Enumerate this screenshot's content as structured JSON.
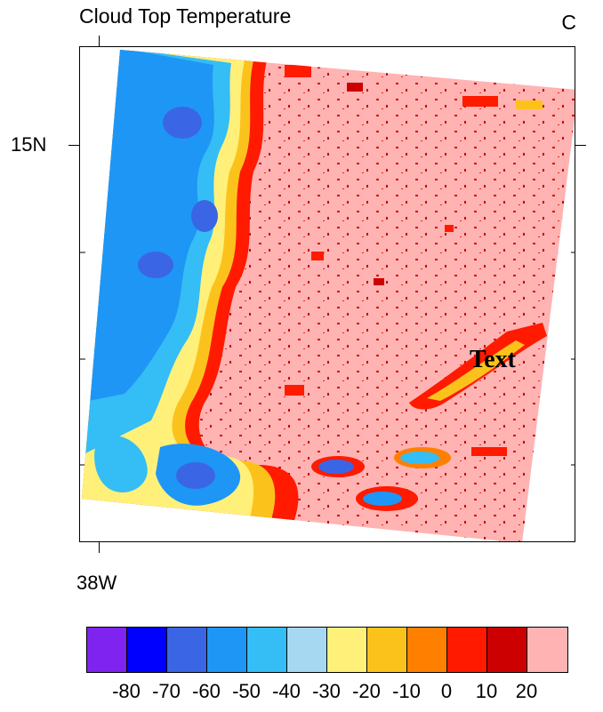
{
  "title": "Cloud Top Temperature",
  "units_label": "C",
  "map": {
    "lat_label": "15N",
    "lon_label": "38W",
    "annotation": "Text"
  },
  "colorbar": {
    "colors": [
      "#7f24f0",
      "#0000ff",
      "#3a66e5",
      "#1e96f5",
      "#35bdf5",
      "#a6d8f2",
      "#fff07a",
      "#fcc21c",
      "#ff8000",
      "#ff1a00",
      "#cc0000",
      "#ffb3b3"
    ],
    "labels": [
      "-80",
      "-70",
      "-60",
      "-50",
      "-40",
      "-30",
      "-20",
      "-10",
      "0",
      "10",
      "20"
    ]
  }
}
